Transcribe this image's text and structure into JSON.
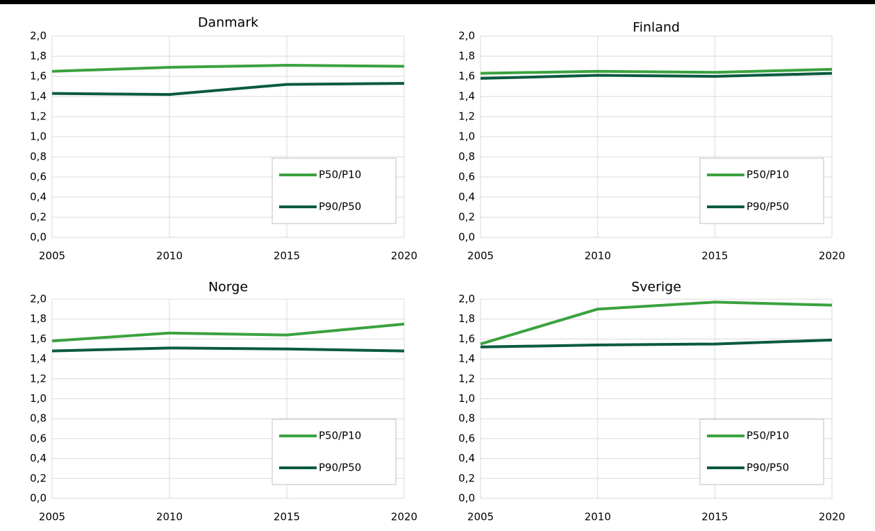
{
  "chart_data": [
    {
      "type": "line",
      "title": "Danmark",
      "x": [
        2005,
        2010,
        2015,
        2020
      ],
      "series": [
        {
          "name": "P50/P10",
          "color": "#3aa23f",
          "values": [
            1.65,
            1.69,
            1.71,
            1.7
          ]
        },
        {
          "name": "P90/P50",
          "color": "#0a5a40",
          "values": [
            1.43,
            1.42,
            1.52,
            1.53
          ]
        }
      ],
      "xlim": [
        2005,
        2020
      ],
      "xticks": [
        2005,
        2010,
        2015,
        2020
      ],
      "ylim": [
        0,
        2
      ],
      "yticks": [
        {
          "value": 0,
          "label": "0,0"
        },
        {
          "value": 0.2,
          "label": "0,2"
        },
        {
          "value": 0.4,
          "label": "0,4"
        },
        {
          "value": 0.6,
          "label": "0,6"
        },
        {
          "value": 0.8,
          "label": "0,8"
        },
        {
          "value": 1,
          "label": "1,0"
        },
        {
          "value": 1.2,
          "label": "1,2"
        },
        {
          "value": 1.4,
          "label": "1,4"
        },
        {
          "value": 1.6,
          "label": "1,6"
        },
        {
          "value": 1.8,
          "label": "1,8"
        },
        {
          "value": 2,
          "label": "2,0"
        }
      ],
      "grid": true,
      "legend": "lower right"
    },
    {
      "type": "line",
      "title": "Finland",
      "x": [
        2005,
        2010,
        2015,
        2020
      ],
      "series": [
        {
          "name": "P50/P10",
          "color": "#3aa23f",
          "values": [
            1.63,
            1.65,
            1.64,
            1.67
          ]
        },
        {
          "name": "P90/P50",
          "color": "#0a5a40",
          "values": [
            1.58,
            1.61,
            1.6,
            1.63
          ]
        }
      ],
      "xlim": [
        2005,
        2020
      ],
      "xticks": [
        2005,
        2010,
        2015,
        2020
      ],
      "ylim": [
        0,
        2
      ],
      "yticks": [
        {
          "value": 0,
          "label": "0,0"
        },
        {
          "value": 0.2,
          "label": "0,2"
        },
        {
          "value": 0.4,
          "label": "0,4"
        },
        {
          "value": 0.6,
          "label": "0,6"
        },
        {
          "value": 0.8,
          "label": "0,8"
        },
        {
          "value": 1,
          "label": "1,0"
        },
        {
          "value": 1.2,
          "label": "1,2"
        },
        {
          "value": 1.4,
          "label": "1,4"
        },
        {
          "value": 1.6,
          "label": "1,6"
        },
        {
          "value": 1.8,
          "label": "1,8"
        },
        {
          "value": 2,
          "label": "2,0"
        }
      ],
      "grid": true,
      "legend": "lower right"
    },
    {
      "type": "line",
      "title": "Norge",
      "x": [
        2005,
        2010,
        2015,
        2020
      ],
      "series": [
        {
          "name": "P50/P10",
          "color": "#3aa23f",
          "values": [
            1.58,
            1.66,
            1.64,
            1.75
          ]
        },
        {
          "name": "P90/P50",
          "color": "#0a5a40",
          "values": [
            1.48,
            1.51,
            1.5,
            1.48
          ]
        }
      ],
      "xlim": [
        2005,
        2020
      ],
      "xticks": [
        2005,
        2010,
        2015,
        2020
      ],
      "ylim": [
        0,
        2
      ],
      "yticks": [
        {
          "value": 0,
          "label": "0,0"
        },
        {
          "value": 0.2,
          "label": "0,2"
        },
        {
          "value": 0.4,
          "label": "0,4"
        },
        {
          "value": 0.6,
          "label": "0,6"
        },
        {
          "value": 0.8,
          "label": "0,8"
        },
        {
          "value": 1,
          "label": "1,0"
        },
        {
          "value": 1.2,
          "label": "1,2"
        },
        {
          "value": 1.4,
          "label": "1,4"
        },
        {
          "value": 1.6,
          "label": "1,6"
        },
        {
          "value": 1.8,
          "label": "1,8"
        },
        {
          "value": 2,
          "label": "2,0"
        }
      ],
      "grid": true,
      "legend": "lower right"
    },
    {
      "type": "line",
      "title": "Sverige",
      "x": [
        2005,
        2010,
        2015,
        2020
      ],
      "series": [
        {
          "name": "P50/P10",
          "color": "#3aa23f",
          "values": [
            1.55,
            1.9,
            1.97,
            1.94
          ]
        },
        {
          "name": "P90/P50",
          "color": "#0a5a40",
          "values": [
            1.52,
            1.54,
            1.55,
            1.59
          ]
        }
      ],
      "xlim": [
        2005,
        2020
      ],
      "xticks": [
        2005,
        2010,
        2015,
        2020
      ],
      "ylim": [
        0,
        2
      ],
      "yticks": [
        {
          "value": 0,
          "label": "0,0"
        },
        {
          "value": 0.2,
          "label": "0,2"
        },
        {
          "value": 0.4,
          "label": "0,4"
        },
        {
          "value": 0.6,
          "label": "0,6"
        },
        {
          "value": 0.8,
          "label": "0,8"
        },
        {
          "value": 1,
          "label": "1,0"
        },
        {
          "value": 1.2,
          "label": "1,2"
        },
        {
          "value": 1.4,
          "label": "1,4"
        },
        {
          "value": 1.6,
          "label": "1,6"
        },
        {
          "value": 1.8,
          "label": "1,8"
        },
        {
          "value": 2,
          "label": "2,0"
        }
      ],
      "grid": true,
      "legend": "lower right"
    }
  ]
}
